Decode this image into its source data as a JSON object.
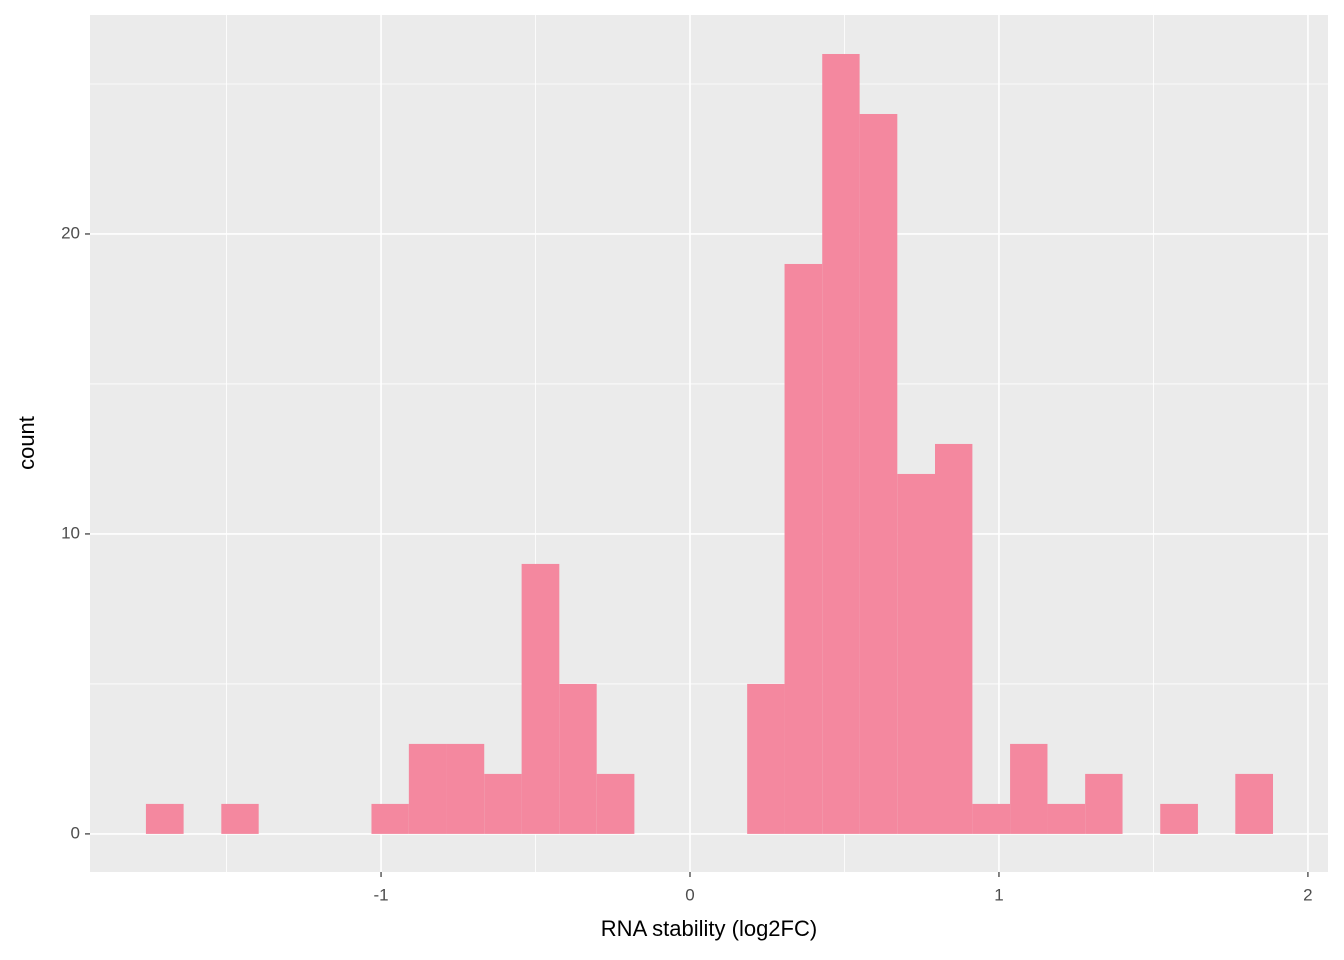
{
  "chart_data": {
    "type": "histogram",
    "x_label": "RNA stability (log2FC)",
    "y_label": "count",
    "bins": [
      -1.761,
      -1.639,
      -1.517,
      -1.396,
      -1.274,
      -1.153,
      -1.031,
      -0.91,
      -0.788,
      -0.666,
      -0.545,
      -0.423,
      -0.302,
      -0.18,
      -0.058,
      0.063,
      0.185,
      0.306,
      0.428,
      0.549,
      0.671,
      0.793,
      0.914,
      1.036,
      1.157,
      1.279,
      1.4,
      1.522,
      1.644,
      1.765,
      1.887
    ],
    "counts": [
      1,
      0,
      1,
      0,
      0,
      0,
      1,
      3,
      3,
      2,
      9,
      5,
      2,
      0,
      0,
      0,
      5,
      19,
      26,
      24,
      12,
      13,
      1,
      3,
      1,
      2,
      0,
      1,
      0,
      2
    ],
    "color": "#f4889f",
    "xlim": [
      -1.942,
      2.065
    ],
    "ylim": [
      -1.27,
      27.3
    ],
    "xticks": [
      -1,
      0,
      1,
      2
    ],
    "yticks": [
      0,
      10,
      20
    ],
    "x_minor_ticks": [
      -1.5,
      -0.5,
      0.5,
      1.5
    ],
    "y_minor_ticks": [
      5,
      15,
      25
    ],
    "grid": true,
    "panel_color": "#ebebeb"
  }
}
